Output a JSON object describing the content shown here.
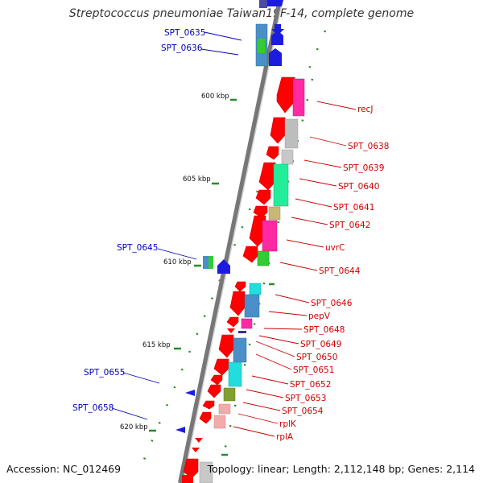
{
  "title": "Streptococcus pneumoniae Taiwan19F-14, complete genome",
  "accession": "Accession: NC_012469",
  "topology": "Topology: linear; Length: 2,112,148 bp; Genes: 2,114",
  "kbp_labels": [
    "600 kbp",
    "605 kbp",
    "610 kbp",
    "615 kbp",
    "620 kbp"
  ],
  "genes_forward": [
    "recJ",
    "SPT_0638",
    "SPT_0639",
    "SPT_0640",
    "SPT_0641",
    "SPT_0642",
    "uvrC",
    "SPT_0644",
    "SPT_0646",
    "pepV",
    "SPT_0648",
    "SPT_0649",
    "SPT_0650",
    "SPT_0651",
    "SPT_0652",
    "SPT_0653",
    "SPT_0654",
    "rplK",
    "rplA"
  ],
  "genes_reverse": [
    "SPT_0635",
    "SPT_0636",
    "SPT_0645",
    "SPT_0655",
    "SPT_0658"
  ],
  "colors": {
    "forward": "#ff0000",
    "reverse": "#0000ff",
    "label_forward": "#cc0000",
    "label_reverse": "#0000bb",
    "axis": "#666666",
    "ticks": "#2a8a2a"
  }
}
